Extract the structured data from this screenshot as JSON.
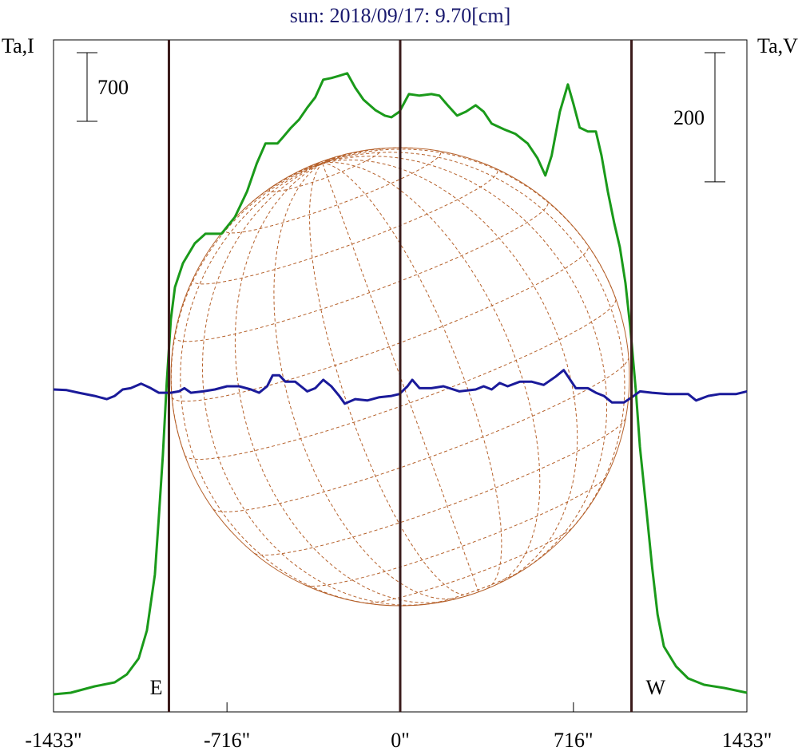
{
  "chart_data": {
    "type": "line",
    "title": "sun: 2018/09/17: 9.70[cm]",
    "y_label": "Ta,I",
    "y2_label": "Ta,V",
    "xlim": [
      -1433,
      1433
    ],
    "xticks": [
      {
        "value": -1433,
        "label": "-1433\""
      },
      {
        "value": -716,
        "label": "-716\""
      },
      {
        "value": 0,
        "label": "0\""
      },
      {
        "value": 716,
        "label": "716\""
      },
      {
        "value": 1433,
        "label": "1433\""
      }
    ],
    "ylim": [
      0,
      6850
    ],
    "y2lim": [
      -494,
      546
    ],
    "vlines": [
      -956,
      0,
      956
    ],
    "limb_labels": [
      "E",
      "W"
    ],
    "scale_bars": [
      {
        "value": 700
      },
      {
        "value": 200,
        "axis": "y2"
      }
    ],
    "series": [
      {
        "color": "#1a9a1a",
        "x": [
          -1433,
          -1362,
          -1263,
          -1180,
          -1130,
          -1081,
          -1047,
          -1014,
          -998,
          -981,
          -965,
          -948,
          -931,
          -898,
          -849,
          -805,
          -739,
          -683,
          -633,
          -593,
          -557,
          -507,
          -484,
          -451,
          -418,
          -384,
          -351,
          -318,
          -285,
          -252,
          -219,
          -186,
          -152,
          -103,
          -63,
          -36,
          -3,
          36,
          80,
          129,
          162,
          196,
          235,
          272,
          312,
          345,
          378,
          428,
          477,
          527,
          567,
          600,
          626,
          660,
          693,
          716,
          742,
          776,
          809,
          832,
          858,
          885,
          908,
          931,
          951,
          974,
          991,
          1018,
          1041,
          1064,
          1090,
          1140,
          1190,
          1256,
          1339,
          1433
        ],
        "values": [
          179,
          195,
          260,
          301,
          382,
          545,
          830,
          1400,
          1969,
          2620,
          3352,
          4003,
          4329,
          4573,
          4776,
          4874,
          4874,
          5045,
          5305,
          5590,
          5794,
          5794,
          5859,
          5956,
          6038,
          6160,
          6265,
          6445,
          6461,
          6485,
          6510,
          6363,
          6241,
          6135,
          6078,
          6062,
          6119,
          6298,
          6282,
          6298,
          6282,
          6184,
          6078,
          6119,
          6184,
          6119,
          5997,
          5940,
          5891,
          5794,
          5647,
          5468,
          5671,
          6119,
          6396,
          6200,
          5956,
          5916,
          5916,
          5671,
          5305,
          4980,
          4736,
          4370,
          3922,
          3271,
          2701,
          2051,
          1481,
          993,
          667,
          464,
          342,
          277,
          244,
          195
        ]
      },
      {
        "color": "#1a1a9a",
        "axis": "y2",
        "x": [
          -1433,
          -1379,
          -1329,
          -1263,
          -1213,
          -1180,
          -1147,
          -1114,
          -1071,
          -1031,
          -998,
          -948,
          -915,
          -892,
          -865,
          -815,
          -766,
          -716,
          -666,
          -617,
          -583,
          -550,
          -527,
          -500,
          -474,
          -434,
          -384,
          -351,
          -318,
          -285,
          -252,
          -229,
          -186,
          -136,
          -86,
          -36,
          -3,
          30,
          50,
          80,
          129,
          179,
          245,
          312,
          345,
          378,
          411,
          444,
          494,
          544,
          593,
          643,
          676,
          699,
          726,
          776,
          809,
          842,
          875,
          925,
          958,
          991,
          1041,
          1107,
          1190,
          1223,
          1273,
          1322,
          1389,
          1433
        ],
        "values": [
          5,
          4,
          0,
          -5,
          -10,
          -5,
          5,
          7,
          14,
          7,
          0,
          0,
          2,
          7,
          0,
          2,
          5,
          10,
          10,
          5,
          0,
          10,
          27,
          27,
          17,
          17,
          2,
          7,
          20,
          10,
          -5,
          -17,
          -10,
          -12,
          -7,
          -5,
          -2,
          10,
          20,
          7,
          7,
          10,
          2,
          5,
          10,
          5,
          15,
          10,
          17,
          17,
          12,
          25,
          35,
          22,
          7,
          7,
          0,
          -5,
          -15,
          -15,
          -7,
          2,
          0,
          -2,
          -2,
          -12,
          -5,
          -2,
          -2,
          2
        ]
      }
    ]
  }
}
